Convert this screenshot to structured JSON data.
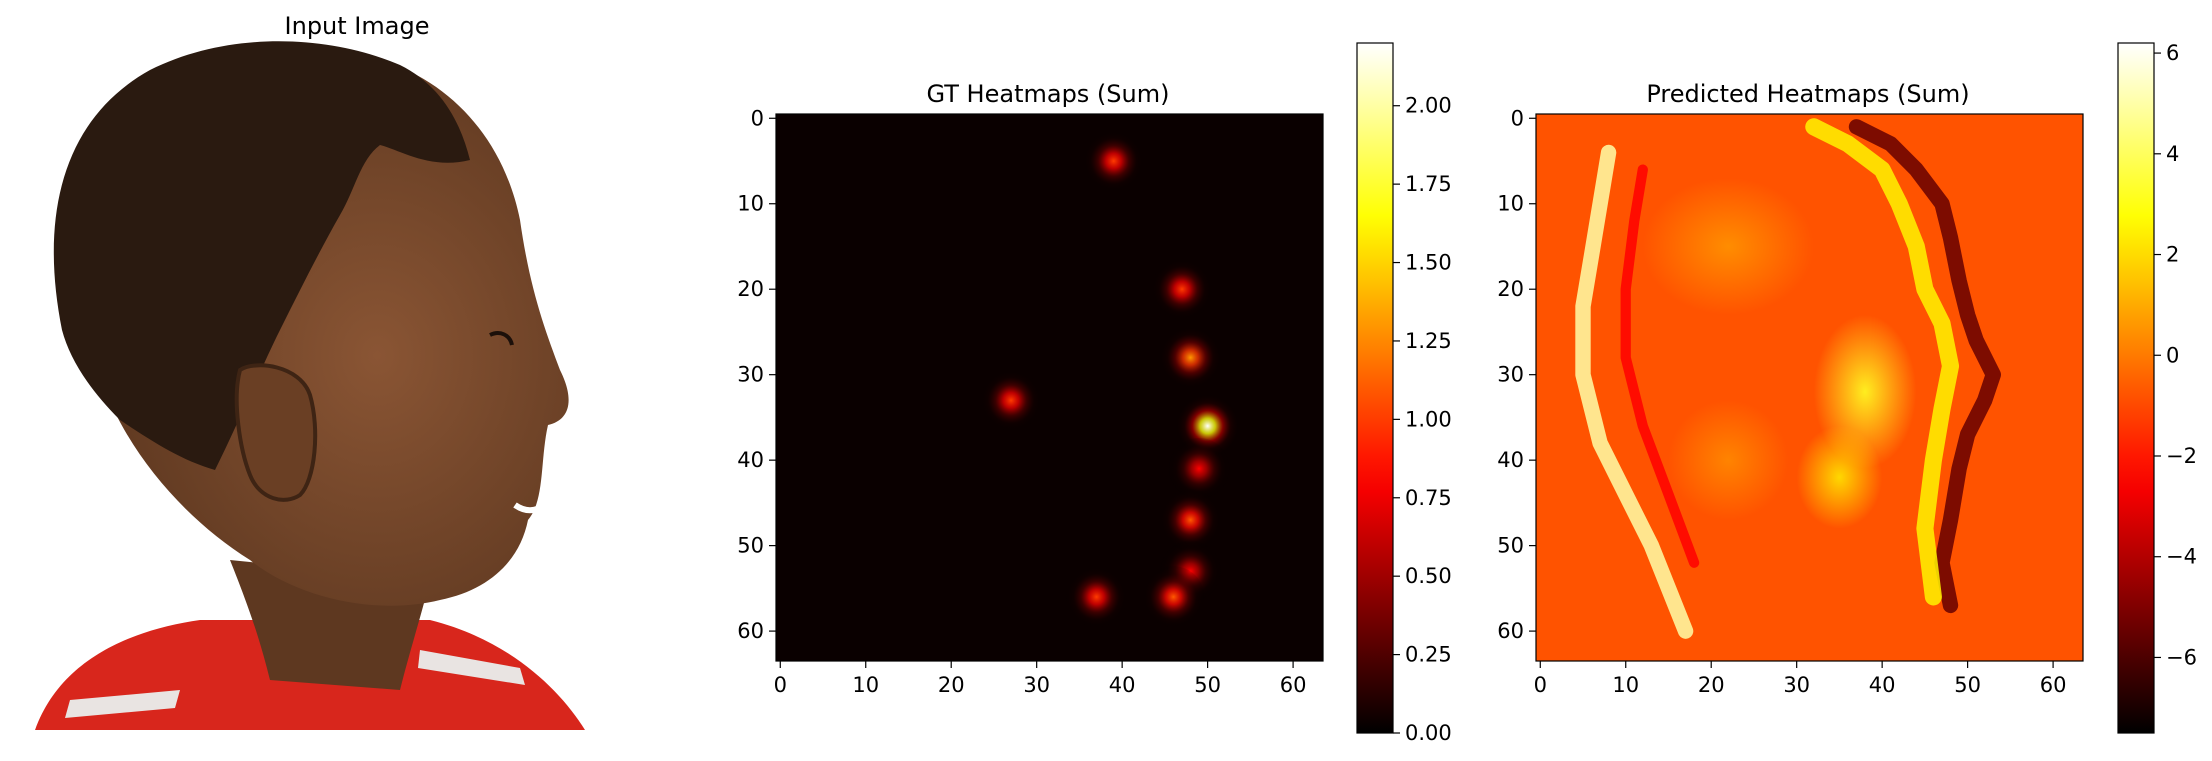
{
  "panels": {
    "input": {
      "title": "Input Image"
    },
    "gt": {
      "title": "GT Heatmaps (Sum)"
    },
    "pred": {
      "title": "Predicted Heatmaps (Sum)"
    }
  },
  "colors": {
    "colormap": "hot",
    "background": "#ffffff",
    "skin": "#7a4a2e",
    "hair": "#2a1a10",
    "shirt": "#d8261c"
  },
  "chart_data": [
    {
      "type": "heatmap",
      "title": "GT Heatmaps (Sum)",
      "colormap": "hot",
      "grid": false,
      "xlim": [
        -0.5,
        63.5
      ],
      "ylim": [
        63.5,
        -0.5
      ],
      "xticks": [
        0,
        10,
        20,
        30,
        40,
        50,
        60
      ],
      "yticks": [
        0,
        10,
        20,
        30,
        40,
        50,
        60
      ],
      "colorbar": {
        "vmin": 0.0,
        "vmax": 2.2,
        "ticks": [
          0.0,
          0.25,
          0.5,
          0.75,
          1.0,
          1.25,
          1.5,
          1.75,
          2.0
        ],
        "tick_labels": [
          "0.00",
          "0.25",
          "0.50",
          "0.75",
          "1.00",
          "1.25",
          "1.50",
          "1.75",
          "2.00"
        ]
      },
      "peaks": [
        {
          "x": 39,
          "y": 5,
          "value": 1.0
        },
        {
          "x": 47,
          "y": 20,
          "value": 1.0
        },
        {
          "x": 48,
          "y": 28,
          "value": 1.3
        },
        {
          "x": 27,
          "y": 33,
          "value": 1.0
        },
        {
          "x": 50,
          "y": 36,
          "value": 2.2
        },
        {
          "x": 49,
          "y": 41,
          "value": 0.8
        },
        {
          "x": 48,
          "y": 47,
          "value": 1.1
        },
        {
          "x": 48,
          "y": 53,
          "value": 0.8
        },
        {
          "x": 37,
          "y": 56,
          "value": 1.0
        },
        {
          "x": 46,
          "y": 56,
          "value": 1.1
        }
      ]
    },
    {
      "type": "heatmap",
      "title": "Predicted Heatmaps (Sum)",
      "colormap": "hot",
      "grid": false,
      "xlim": [
        -0.5,
        63.5
      ],
      "ylim": [
        63.5,
        -0.5
      ],
      "xticks": [
        0,
        10,
        20,
        30,
        40,
        50,
        60
      ],
      "yticks": [
        0,
        10,
        20,
        30,
        40,
        50,
        60
      ],
      "colorbar": {
        "vmin": -7.5,
        "vmax": 6.2,
        "ticks": [
          -6,
          -4,
          -2,
          0,
          2,
          4,
          6
        ],
        "tick_labels": [
          "−6",
          "−4",
          "−2",
          "0",
          "2",
          "4",
          "6"
        ]
      },
      "background_value": -0.8,
      "contours": [
        {
          "points": [
            [
              37,
              1
            ],
            [
              41,
              3
            ],
            [
              44,
              6
            ],
            [
              47,
              10
            ],
            [
              48,
              14
            ],
            [
              49,
              19
            ],
            [
              50,
              23
            ],
            [
              51,
              26
            ],
            [
              53,
              30
            ],
            [
              52,
              33
            ],
            [
              50,
              37
            ],
            [
              49,
              41
            ],
            [
              48,
              47
            ],
            [
              47,
              52
            ],
            [
              48,
              57
            ]
          ],
          "value": -5.5,
          "width": 1.8
        },
        {
          "points": [
            [
              32,
              1
            ],
            [
              36,
              3
            ],
            [
              40,
              6
            ],
            [
              42,
              10
            ],
            [
              44,
              15
            ],
            [
              45,
              20
            ],
            [
              47,
              24
            ],
            [
              48,
              29
            ],
            [
              47,
              34
            ],
            [
              46,
              40
            ],
            [
              45,
              48
            ],
            [
              46,
              56
            ]
          ],
          "value": 2.5,
          "width": 2.0
        },
        {
          "points": [
            [
              8,
              4
            ],
            [
              7,
              10
            ],
            [
              6,
              16
            ],
            [
              5,
              22
            ],
            [
              5,
              30
            ],
            [
              7,
              38
            ],
            [
              10,
              44
            ],
            [
              13,
              50
            ],
            [
              15,
              55
            ],
            [
              17,
              60
            ]
          ],
          "value": 5.0,
          "width": 1.8
        },
        {
          "points": [
            [
              12,
              6
            ],
            [
              11,
              12
            ],
            [
              10,
              20
            ],
            [
              10,
              28
            ],
            [
              12,
              36
            ],
            [
              15,
              44
            ],
            [
              18,
              52
            ]
          ],
          "value": -2.5,
          "width": 1.2
        }
      ],
      "blobs": [
        {
          "x": 38,
          "y": 32,
          "rx": 6,
          "ry": 9,
          "value": 3.2
        },
        {
          "x": 35,
          "y": 42,
          "rx": 5,
          "ry": 6,
          "value": 2.2
        },
        {
          "x": 22,
          "y": 15,
          "rx": 10,
          "ry": 8,
          "value": 0.5
        },
        {
          "x": 22,
          "y": 40,
          "rx": 7,
          "ry": 7,
          "value": 0.3
        }
      ]
    }
  ]
}
